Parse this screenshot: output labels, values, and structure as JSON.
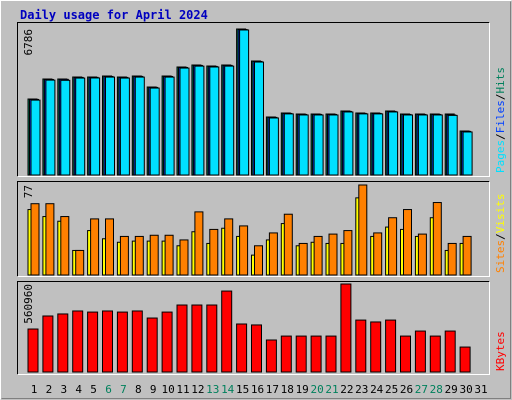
{
  "title": "Daily usage for April 2024",
  "chart_data": [
    {
      "type": "bar",
      "ylim": [
        0,
        6786
      ],
      "yticks": [
        6786
      ],
      "legend_separator": "/",
      "series": [
        {
          "name": "Pages",
          "color": "#00e0ff",
          "values": [
            3480,
            4410,
            4400,
            4505,
            4510,
            4550,
            4505,
            4550,
            4040,
            4550,
            4970,
            5060,
            5020,
            5060,
            6740,
            5250,
            2650,
            2840,
            2790,
            2790,
            2790,
            2930,
            2840,
            2840,
            2930,
            2790,
            2790,
            2790,
            2770,
            2000,
            null
          ]
        },
        {
          "name": "Files",
          "color": "#0040ff",
          "values": [
            3512,
            4440,
            4445,
            4535,
            4538,
            4580,
            4536,
            4582,
            4071,
            4580,
            4998,
            5092,
            5046,
            5094,
            6760,
            5278,
            2678,
            2862,
            2816,
            2817,
            2815,
            2955,
            2862,
            2862,
            2955,
            2816,
            2816,
            2815,
            2790,
            2027,
            null
          ]
        },
        {
          "name": "Hits",
          "color": "#00805c",
          "values": [
            3532,
            4462,
            4462,
            4555,
            4555,
            4601,
            4555,
            4601,
            4090,
            4601,
            5020,
            5113,
            5066,
            5113,
            6786,
            5299,
            2696,
            2882,
            2835,
            2835,
            2835,
            2975,
            2882,
            2882,
            2975,
            2835,
            2835,
            2835,
            2835,
            2045,
            null
          ]
        }
      ]
    },
    {
      "type": "bar",
      "ylim": [
        0,
        77
      ],
      "yticks": [
        77
      ],
      "legend_separator": "/",
      "series": [
        {
          "name": "Sites",
          "color": "#ff8000",
          "values": [
            61,
            61,
            50,
            21,
            48,
            48,
            33,
            33,
            34,
            34,
            30,
            54,
            39,
            48,
            42,
            25,
            36,
            52,
            27,
            33,
            35,
            38,
            77,
            36,
            49,
            56,
            35,
            62,
            27,
            33,
            null
          ]
        },
        {
          "name": "Visits",
          "color": "#ffff00",
          "values": [
            56,
            50,
            46,
            21,
            38,
            31,
            28,
            29,
            29,
            29,
            25,
            37,
            27,
            40,
            33,
            17,
            30,
            44,
            25,
            28,
            27,
            27,
            66,
            33,
            41,
            39,
            33,
            49,
            21,
            27,
            null
          ]
        }
      ]
    },
    {
      "type": "bar",
      "ylim": [
        0,
        560960
      ],
      "yticks": [
        560960
      ],
      "categories": [
        1,
        2,
        3,
        4,
        5,
        6,
        7,
        8,
        9,
        10,
        11,
        12,
        13,
        14,
        15,
        16,
        17,
        18,
        19,
        20,
        21,
        22,
        23,
        24,
        25,
        26,
        27,
        28,
        29,
        30,
        31
      ],
      "weekend": [
        6,
        7,
        13,
        14,
        20,
        21,
        27,
        28
      ],
      "weekend_color": "#00805c",
      "weekday_color": "#000000",
      "series": [
        {
          "name": "KBytes",
          "color": "#ff0000",
          "values": [
            274000,
            357000,
            370000,
            389000,
            382000,
            389000,
            382000,
            389000,
            344000,
            382000,
            427000,
            427000,
            427000,
            516000,
            306000,
            300000,
            204000,
            229000,
            229000,
            229000,
            229000,
            560960,
            331000,
            319000,
            331000,
            229000,
            261000,
            229000,
            261000,
            159000,
            null
          ]
        }
      ]
    }
  ]
}
